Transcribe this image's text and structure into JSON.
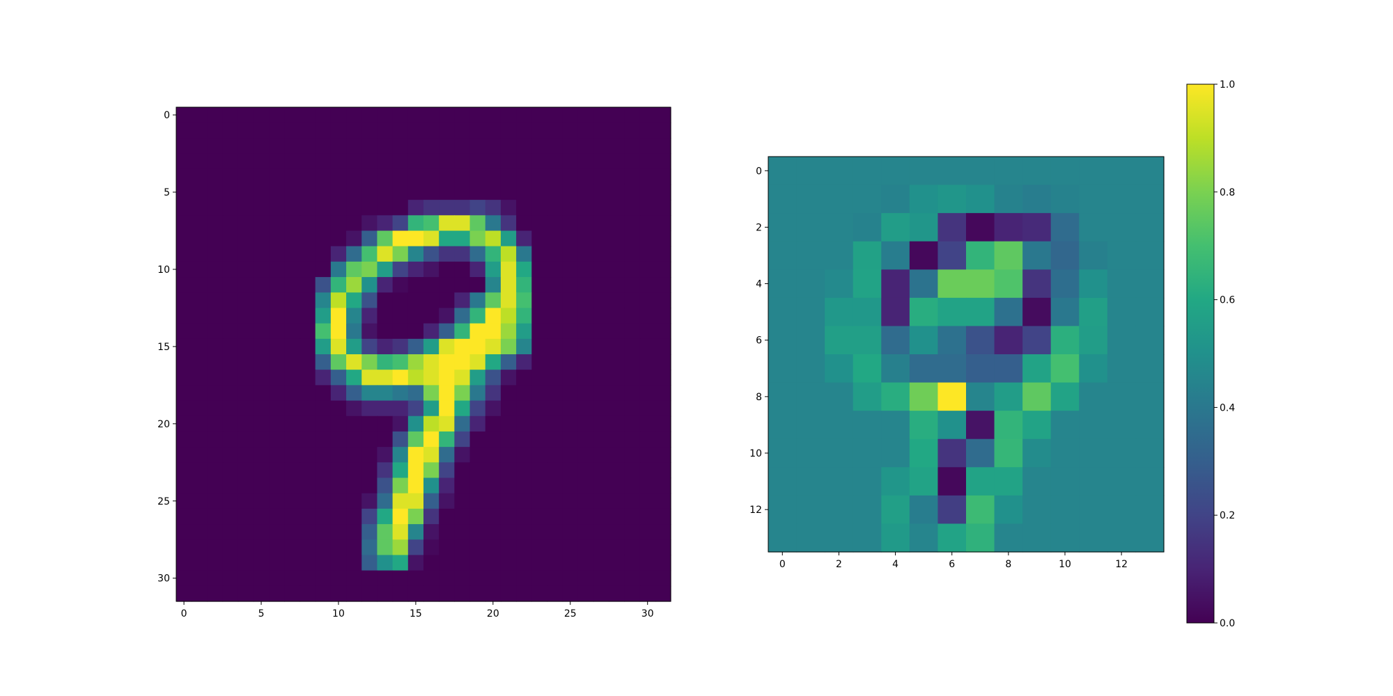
{
  "chart_data": [
    {
      "type": "heatmap",
      "title": "",
      "xlabel": "",
      "ylabel": "",
      "shape": [
        32,
        32
      ],
      "xlim": [
        -0.5,
        31.5
      ],
      "ylim": [
        31.5,
        -0.5
      ],
      "xticks": [
        0,
        5,
        10,
        15,
        20,
        25,
        30
      ],
      "xtick_labels": [
        "0",
        "5",
        "10",
        "15",
        "20",
        "25",
        "30"
      ],
      "yticks": [
        0,
        5,
        10,
        15,
        20,
        25,
        30
      ],
      "ytick_labels": [
        "0",
        "5",
        "10",
        "15",
        "20",
        "25",
        "30"
      ],
      "colormap": "viridis",
      "vmin": 0,
      "vmax": 1,
      "background_value": 0.0,
      "cells": [
        [
          6,
          15,
          0.1
        ],
        [
          6,
          16,
          0.15
        ],
        [
          6,
          17,
          0.15
        ],
        [
          6,
          18,
          0.15
        ],
        [
          6,
          19,
          0.2
        ],
        [
          6,
          20,
          0.15
        ],
        [
          6,
          21,
          0.05
        ],
        [
          7,
          12,
          0.05
        ],
        [
          7,
          13,
          0.1
        ],
        [
          7,
          14,
          0.2
        ],
        [
          7,
          15,
          0.65
        ],
        [
          7,
          16,
          0.7
        ],
        [
          7,
          17,
          0.95
        ],
        [
          7,
          18,
          0.95
        ],
        [
          7,
          19,
          0.75
        ],
        [
          7,
          20,
          0.4
        ],
        [
          7,
          21,
          0.15
        ],
        [
          8,
          11,
          0.05
        ],
        [
          8,
          12,
          0.3
        ],
        [
          8,
          13,
          0.75
        ],
        [
          8,
          14,
          1.0
        ],
        [
          8,
          15,
          1.0
        ],
        [
          8,
          16,
          0.95
        ],
        [
          8,
          17,
          0.6
        ],
        [
          8,
          18,
          0.6
        ],
        [
          8,
          19,
          0.8
        ],
        [
          8,
          20,
          0.9
        ],
        [
          8,
          21,
          0.55
        ],
        [
          8,
          22,
          0.1
        ],
        [
          9,
          10,
          0.1
        ],
        [
          9,
          11,
          0.35
        ],
        [
          9,
          12,
          0.7
        ],
        [
          9,
          13,
          0.95
        ],
        [
          9,
          14,
          0.8
        ],
        [
          9,
          15,
          0.45
        ],
        [
          9,
          16,
          0.25
        ],
        [
          9,
          17,
          0.15
        ],
        [
          9,
          18,
          0.15
        ],
        [
          9,
          19,
          0.35
        ],
        [
          9,
          20,
          0.65
        ],
        [
          9,
          21,
          0.9
        ],
        [
          9,
          22,
          0.4
        ],
        [
          10,
          10,
          0.4
        ],
        [
          10,
          11,
          0.75
        ],
        [
          10,
          12,
          0.8
        ],
        [
          10,
          13,
          0.55
        ],
        [
          10,
          14,
          0.2
        ],
        [
          10,
          15,
          0.1
        ],
        [
          10,
          16,
          0.05
        ],
        [
          10,
          19,
          0.1
        ],
        [
          10,
          20,
          0.55
        ],
        [
          10,
          21,
          0.95
        ],
        [
          10,
          22,
          0.6
        ],
        [
          11,
          9,
          0.25
        ],
        [
          11,
          10,
          0.65
        ],
        [
          11,
          11,
          0.85
        ],
        [
          11,
          12,
          0.5
        ],
        [
          11,
          13,
          0.1
        ],
        [
          11,
          14,
          0.02
        ],
        [
          11,
          20,
          0.45
        ],
        [
          11,
          21,
          0.95
        ],
        [
          11,
          22,
          0.65
        ],
        [
          12,
          9,
          0.45
        ],
        [
          12,
          10,
          0.9
        ],
        [
          12,
          11,
          0.6
        ],
        [
          12,
          12,
          0.25
        ],
        [
          12,
          18,
          0.1
        ],
        [
          12,
          19,
          0.4
        ],
        [
          12,
          20,
          0.75
        ],
        [
          12,
          21,
          0.95
        ],
        [
          12,
          22,
          0.7
        ],
        [
          13,
          9,
          0.55
        ],
        [
          13,
          10,
          1.0
        ],
        [
          13,
          11,
          0.45
        ],
        [
          13,
          12,
          0.1
        ],
        [
          13,
          17,
          0.05
        ],
        [
          13,
          18,
          0.35
        ],
        [
          13,
          19,
          0.65
        ],
        [
          13,
          20,
          1.0
        ],
        [
          13,
          21,
          0.9
        ],
        [
          13,
          22,
          0.65
        ],
        [
          14,
          9,
          0.7
        ],
        [
          14,
          10,
          1.0
        ],
        [
          14,
          11,
          0.4
        ],
        [
          14,
          12,
          0.05
        ],
        [
          14,
          16,
          0.1
        ],
        [
          14,
          17,
          0.3
        ],
        [
          14,
          18,
          0.65
        ],
        [
          14,
          19,
          1.0
        ],
        [
          14,
          20,
          1.0
        ],
        [
          14,
          21,
          0.85
        ],
        [
          14,
          22,
          0.55
        ],
        [
          15,
          9,
          0.55
        ],
        [
          15,
          10,
          0.95
        ],
        [
          15,
          11,
          0.55
        ],
        [
          15,
          12,
          0.2
        ],
        [
          15,
          13,
          0.1
        ],
        [
          15,
          14,
          0.15
        ],
        [
          15,
          15,
          0.3
        ],
        [
          15,
          16,
          0.55
        ],
        [
          15,
          17,
          0.95
        ],
        [
          15,
          18,
          1.0
        ],
        [
          15,
          19,
          1.0
        ],
        [
          15,
          20,
          0.95
        ],
        [
          15,
          21,
          0.8
        ],
        [
          15,
          22,
          0.45
        ],
        [
          16,
          9,
          0.3
        ],
        [
          16,
          10,
          0.75
        ],
        [
          16,
          11,
          0.95
        ],
        [
          16,
          12,
          0.8
        ],
        [
          16,
          13,
          0.65
        ],
        [
          16,
          14,
          0.7
        ],
        [
          16,
          15,
          0.85
        ],
        [
          16,
          16,
          0.95
        ],
        [
          16,
          17,
          1.0
        ],
        [
          16,
          18,
          1.0
        ],
        [
          16,
          19,
          0.95
        ],
        [
          16,
          20,
          0.6
        ],
        [
          16,
          21,
          0.3
        ],
        [
          16,
          22,
          0.1
        ],
        [
          17,
          9,
          0.1
        ],
        [
          17,
          10,
          0.3
        ],
        [
          17,
          11,
          0.6
        ],
        [
          17,
          12,
          0.95
        ],
        [
          17,
          13,
          0.95
        ],
        [
          17,
          14,
          1.0
        ],
        [
          17,
          15,
          0.9
        ],
        [
          17,
          16,
          0.95
        ],
        [
          17,
          17,
          1.0
        ],
        [
          17,
          18,
          0.95
        ],
        [
          17,
          19,
          0.55
        ],
        [
          17,
          20,
          0.25
        ],
        [
          17,
          21,
          0.05
        ],
        [
          18,
          10,
          0.1
        ],
        [
          18,
          11,
          0.3
        ],
        [
          18,
          12,
          0.45
        ],
        [
          18,
          13,
          0.45
        ],
        [
          18,
          14,
          0.4
        ],
        [
          18,
          15,
          0.35
        ],
        [
          18,
          16,
          0.8
        ],
        [
          18,
          17,
          1.0
        ],
        [
          18,
          18,
          0.8
        ],
        [
          18,
          19,
          0.4
        ],
        [
          18,
          20,
          0.15
        ],
        [
          19,
          11,
          0.05
        ],
        [
          19,
          12,
          0.1
        ],
        [
          19,
          13,
          0.1
        ],
        [
          19,
          14,
          0.1
        ],
        [
          19,
          15,
          0.2
        ],
        [
          19,
          16,
          0.55
        ],
        [
          19,
          17,
          1.0
        ],
        [
          19,
          18,
          0.6
        ],
        [
          19,
          19,
          0.2
        ],
        [
          19,
          20,
          0.05
        ],
        [
          20,
          14,
          0.05
        ],
        [
          20,
          15,
          0.5
        ],
        [
          20,
          16,
          0.9
        ],
        [
          20,
          17,
          0.95
        ],
        [
          20,
          18,
          0.35
        ],
        [
          20,
          19,
          0.1
        ],
        [
          21,
          14,
          0.25
        ],
        [
          21,
          15,
          0.75
        ],
        [
          21,
          16,
          1.0
        ],
        [
          21,
          17,
          0.65
        ],
        [
          21,
          18,
          0.2
        ],
        [
          22,
          13,
          0.05
        ],
        [
          22,
          14,
          0.45
        ],
        [
          22,
          15,
          1.0
        ],
        [
          22,
          16,
          0.95
        ],
        [
          22,
          17,
          0.35
        ],
        [
          22,
          18,
          0.05
        ],
        [
          23,
          13,
          0.15
        ],
        [
          23,
          14,
          0.6
        ],
        [
          23,
          15,
          1.0
        ],
        [
          23,
          16,
          0.8
        ],
        [
          23,
          17,
          0.2
        ],
        [
          24,
          13,
          0.25
        ],
        [
          24,
          14,
          0.8
        ],
        [
          24,
          15,
          1.0
        ],
        [
          24,
          16,
          0.5
        ],
        [
          24,
          17,
          0.1
        ],
        [
          25,
          12,
          0.05
        ],
        [
          25,
          13,
          0.35
        ],
        [
          25,
          14,
          0.95
        ],
        [
          25,
          15,
          0.95
        ],
        [
          25,
          16,
          0.3
        ],
        [
          25,
          17,
          0.05
        ],
        [
          26,
          12,
          0.2
        ],
        [
          26,
          13,
          0.6
        ],
        [
          26,
          14,
          1.0
        ],
        [
          26,
          15,
          0.8
        ],
        [
          26,
          16,
          0.15
        ],
        [
          27,
          12,
          0.3
        ],
        [
          27,
          13,
          0.75
        ],
        [
          27,
          14,
          0.95
        ],
        [
          27,
          15,
          0.45
        ],
        [
          27,
          16,
          0.05
        ],
        [
          28,
          12,
          0.35
        ],
        [
          28,
          13,
          0.75
        ],
        [
          28,
          14,
          0.85
        ],
        [
          28,
          15,
          0.2
        ],
        [
          28,
          16,
          0.02
        ],
        [
          29,
          12,
          0.3
        ],
        [
          29,
          13,
          0.5
        ],
        [
          29,
          14,
          0.6
        ],
        [
          29,
          15,
          0.05
        ]
      ]
    },
    {
      "type": "heatmap",
      "title": "",
      "xlabel": "",
      "ylabel": "",
      "shape": [
        14,
        14
      ],
      "xlim": [
        -0.5,
        13.5
      ],
      "ylim": [
        13.5,
        -0.5
      ],
      "xticks": [
        0,
        2,
        4,
        6,
        8,
        10,
        12
      ],
      "xtick_labels": [
        "0",
        "2",
        "4",
        "6",
        "8",
        "10",
        "12"
      ],
      "yticks": [
        0,
        2,
        4,
        6,
        8,
        10,
        12
      ],
      "ytick_labels": [
        "0",
        "2",
        "4",
        "6",
        "8",
        "10",
        "12"
      ],
      "colormap": "viridis",
      "vmin": 0,
      "vmax": 1,
      "values": [
        [
          0.45,
          0.45,
          0.45,
          0.45,
          0.45,
          0.45,
          0.45,
          0.45,
          0.45,
          0.45,
          0.45,
          0.45,
          0.45,
          0.45
        ],
        [
          0.45,
          0.45,
          0.45,
          0.45,
          0.44,
          0.5,
          0.52,
          0.5,
          0.44,
          0.42,
          0.44,
          0.45,
          0.45,
          0.45
        ],
        [
          0.45,
          0.45,
          0.45,
          0.44,
          0.55,
          0.52,
          0.15,
          0.02,
          0.1,
          0.12,
          0.35,
          0.45,
          0.45,
          0.45
        ],
        [
          0.45,
          0.45,
          0.45,
          0.57,
          0.42,
          0.02,
          0.2,
          0.65,
          0.75,
          0.4,
          0.33,
          0.43,
          0.45,
          0.45
        ],
        [
          0.45,
          0.45,
          0.47,
          0.58,
          0.1,
          0.38,
          0.77,
          0.77,
          0.72,
          0.15,
          0.36,
          0.5,
          0.45,
          0.45
        ],
        [
          0.45,
          0.45,
          0.53,
          0.53,
          0.1,
          0.62,
          0.58,
          0.58,
          0.37,
          0.03,
          0.4,
          0.56,
          0.45,
          0.45
        ],
        [
          0.45,
          0.45,
          0.56,
          0.56,
          0.35,
          0.5,
          0.37,
          0.25,
          0.1,
          0.2,
          0.63,
          0.55,
          0.45,
          0.45
        ],
        [
          0.45,
          0.45,
          0.5,
          0.6,
          0.43,
          0.35,
          0.35,
          0.3,
          0.3,
          0.58,
          0.7,
          0.5,
          0.45,
          0.45
        ],
        [
          0.45,
          0.45,
          0.45,
          0.55,
          0.62,
          0.78,
          1.0,
          0.45,
          0.55,
          0.75,
          0.58,
          0.45,
          0.45,
          0.45
        ],
        [
          0.45,
          0.45,
          0.45,
          0.45,
          0.45,
          0.62,
          0.5,
          0.05,
          0.65,
          0.58,
          0.45,
          0.45,
          0.45,
          0.45
        ],
        [
          0.45,
          0.45,
          0.45,
          0.45,
          0.45,
          0.6,
          0.15,
          0.35,
          0.66,
          0.48,
          0.45,
          0.45,
          0.45,
          0.45
        ],
        [
          0.45,
          0.45,
          0.45,
          0.45,
          0.52,
          0.58,
          0.02,
          0.58,
          0.58,
          0.45,
          0.45,
          0.45,
          0.45,
          0.45
        ],
        [
          0.45,
          0.45,
          0.45,
          0.45,
          0.56,
          0.42,
          0.18,
          0.68,
          0.5,
          0.45,
          0.45,
          0.45,
          0.45,
          0.45
        ],
        [
          0.45,
          0.45,
          0.45,
          0.45,
          0.54,
          0.45,
          0.58,
          0.64,
          0.45,
          0.45,
          0.45,
          0.45,
          0.45,
          0.45
        ]
      ]
    },
    {
      "type": "colorbar",
      "colormap": "viridis",
      "vmin": 0,
      "vmax": 1,
      "ticks": [
        0.0,
        0.2,
        0.4,
        0.6,
        0.8,
        1.0
      ],
      "tick_labels": [
        "0.0",
        "0.2",
        "0.4",
        "0.6",
        "0.8",
        "1.0"
      ]
    }
  ]
}
